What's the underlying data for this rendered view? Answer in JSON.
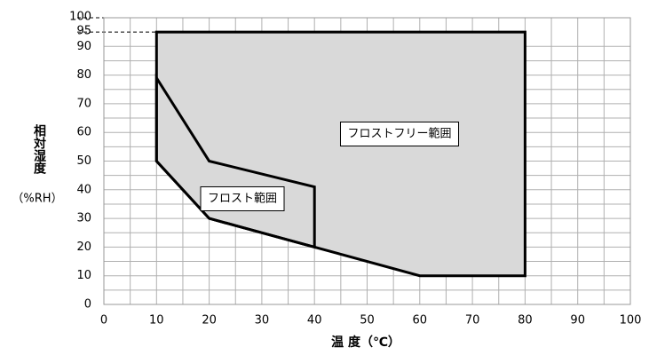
{
  "chart_data": {
    "type": "polygon",
    "xlabel": "温 度（℃）",
    "ylabel": [
      "相対湿度",
      "（%RH）"
    ],
    "xlim": [
      0,
      100
    ],
    "xticks": [
      0,
      10,
      20,
      30,
      40,
      50,
      60,
      70,
      80,
      90,
      100
    ],
    "ylim": [
      0,
      100
    ],
    "yticks": [
      0,
      10,
      20,
      30,
      40,
      50,
      60,
      70,
      80,
      90,
      95,
      100
    ],
    "grid": true,
    "series": [
      {
        "name": "フロストフリー範囲",
        "color": "#d9d9d9",
        "x": [
          10,
          80,
          80,
          60,
          20,
          10
        ],
        "y": [
          95,
          95,
          10,
          10,
          30,
          50
        ]
      },
      {
        "name": "フロスト範囲",
        "color": "#d9d9d9",
        "x": [
          10,
          20,
          40,
          40,
          20,
          10
        ],
        "y": [
          79,
          50,
          41,
          20,
          30,
          50
        ]
      }
    ]
  }
}
